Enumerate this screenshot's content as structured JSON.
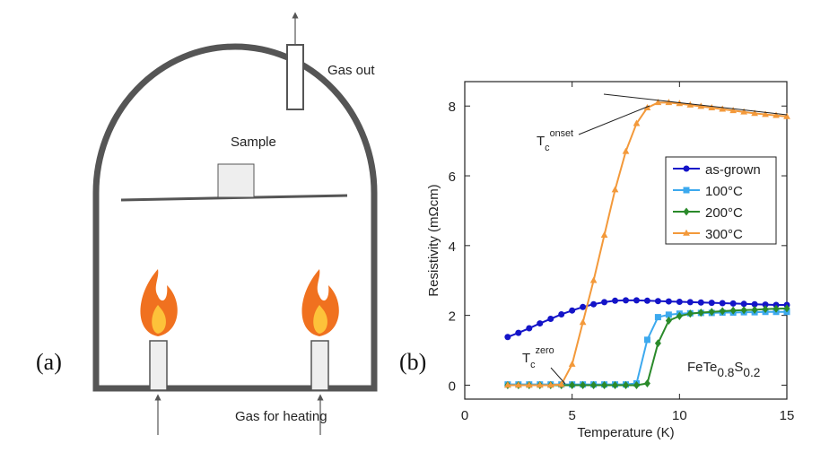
{
  "panel_labels": [
    "(a)",
    "(b)"
  ],
  "diagram": {
    "gas_out": "Gas out",
    "sample": "Sample",
    "gas_in": "Gas for heating"
  },
  "chart_data": {
    "type": "line",
    "xlabel": "Temperature (K)",
    "ylabel": "Resistivity (mΩcm)",
    "annotations": {
      "compound": [
        "FeTe",
        "0.8",
        "S",
        "0.2"
      ],
      "onset": [
        "T",
        "c",
        "onset"
      ],
      "zero": [
        "T",
        "c",
        "zero"
      ]
    },
    "x": [
      2,
      2.5,
      3,
      3.5,
      4,
      4.5,
      5,
      5.5,
      6,
      6.5,
      7,
      7.5,
      8,
      8.5,
      9,
      9.5,
      10,
      10.5,
      11,
      11.5,
      12,
      12.5,
      13,
      13.5,
      14,
      14.5,
      15
    ],
    "series": [
      {
        "name": "as-grown",
        "color": "#1414c8",
        "marker": "circle",
        "values": [
          1.38,
          1.5,
          1.63,
          1.77,
          1.9,
          2.03,
          2.14,
          2.24,
          2.32,
          2.38,
          2.42,
          2.43,
          2.43,
          2.42,
          2.41,
          2.4,
          2.39,
          2.38,
          2.37,
          2.36,
          2.35,
          2.34,
          2.33,
          2.32,
          2.31,
          2.3,
          2.3
        ]
      },
      {
        "name": "100°C",
        "color": "#3ca9ee",
        "marker": "square",
        "values": [
          0.02,
          0.02,
          0.02,
          0.02,
          0.02,
          0.02,
          0.02,
          0.02,
          0.02,
          0.02,
          0.02,
          0.02,
          0.05,
          1.3,
          1.95,
          2.02,
          2.05,
          2.06,
          2.07,
          2.07,
          2.08,
          2.08,
          2.09,
          2.09,
          2.1,
          2.1,
          2.1
        ]
      },
      {
        "name": "200°C",
        "color": "#2a8a2a",
        "marker": "diamond",
        "values": [
          0.0,
          0.0,
          0.0,
          0.0,
          0.0,
          0.0,
          0.0,
          0.0,
          0.0,
          0.0,
          0.0,
          0.0,
          0.0,
          0.05,
          1.2,
          1.85,
          1.98,
          2.05,
          2.08,
          2.1,
          2.12,
          2.14,
          2.15,
          2.16,
          2.18,
          2.19,
          2.2
        ]
      },
      {
        "name": "300°C",
        "color": "#f3993a",
        "marker": "triangle",
        "values": [
          0.0,
          0.0,
          0.0,
          0.0,
          0.0,
          0.02,
          0.6,
          1.8,
          3.0,
          4.3,
          5.6,
          6.7,
          7.5,
          7.95,
          8.1,
          8.1,
          8.07,
          8.03,
          7.99,
          7.95,
          7.91,
          7.87,
          7.83,
          7.79,
          7.76,
          7.73,
          7.7
        ]
      }
    ],
    "xlim": [
      0,
      15
    ],
    "xticks": [
      0,
      5,
      10,
      15
    ],
    "ylim": [
      -0.4,
      8.7
    ],
    "yticks": [
      0,
      2,
      4,
      6,
      8
    ]
  }
}
